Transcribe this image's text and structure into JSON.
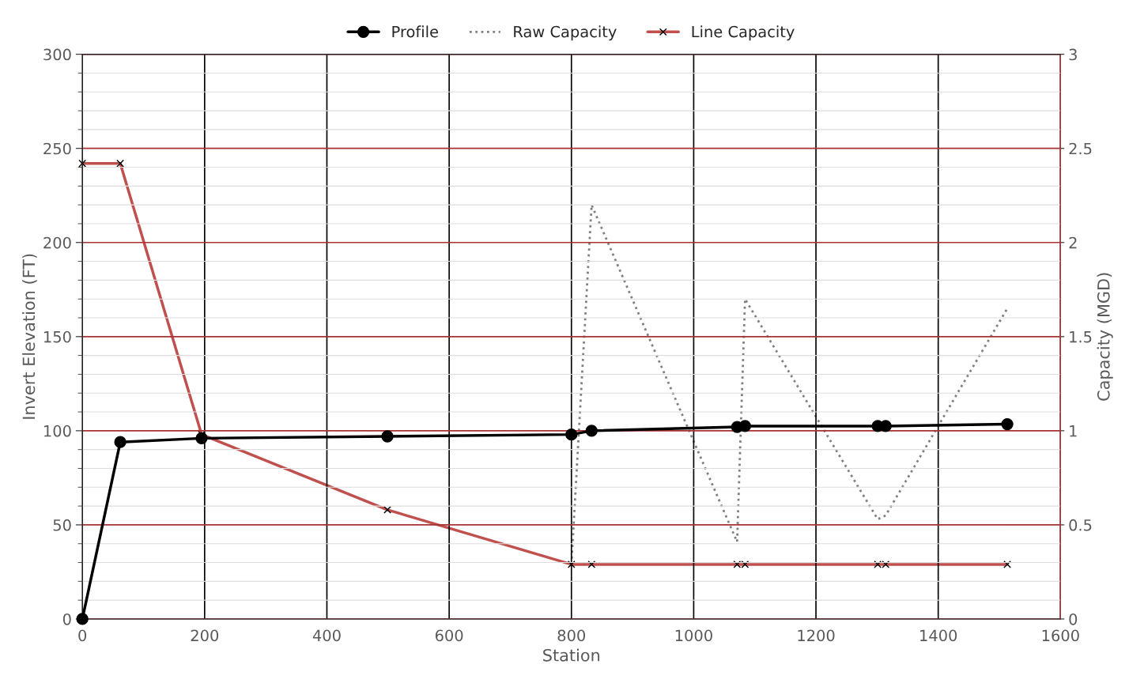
{
  "chart_data": {
    "type": "line",
    "xlabel": "Station",
    "ylabel": "Invert Elevation (FT)",
    "y2label": "Capacity (MGD)",
    "xlim": [
      0,
      1600
    ],
    "xticks": [
      0,
      200,
      400,
      600,
      800,
      1000,
      1200,
      1400,
      1600
    ],
    "ylim": [
      0,
      300
    ],
    "yticks": [
      0,
      50,
      100,
      150,
      200,
      250,
      300
    ],
    "y2lim": [
      0,
      3
    ],
    "y2ticks": [
      0,
      0.5,
      1,
      1.5,
      2,
      2.5,
      3
    ],
    "grid": true,
    "legend": "top",
    "series": [
      {
        "name": "Profile",
        "color": "#000000",
        "marker": "circle",
        "line_style": "solid",
        "x": [
          0,
          62,
          195,
          499,
          800,
          833,
          1071,
          1084,
          1301,
          1314,
          1513
        ],
        "values": [
          0,
          94,
          96,
          97,
          98,
          100,
          102,
          102.5,
          102.5,
          102.5,
          103.5
        ]
      },
      {
        "name": "Raw Capacity",
        "color": "#808080",
        "marker": "none",
        "line_style": "dotted",
        "axis": "y2",
        "x": [
          800,
          833,
          1071,
          1084,
          1301,
          1314,
          1513
        ],
        "values": [
          0.29,
          2.2,
          0.41,
          1.7,
          0.53,
          0.55,
          1.65
        ]
      },
      {
        "name": "Line Capacity",
        "color": "#c0504d",
        "marker": "cross",
        "line_style": "solid",
        "axis": "y2",
        "x": [
          0,
          62,
          195,
          499,
          800,
          833,
          1071,
          1084,
          1301,
          1314,
          1513
        ],
        "values": [
          2.42,
          2.42,
          0.98,
          0.58,
          0.29,
          0.29,
          0.29,
          0.29,
          0.29,
          0.29,
          0.29
        ]
      }
    ]
  }
}
